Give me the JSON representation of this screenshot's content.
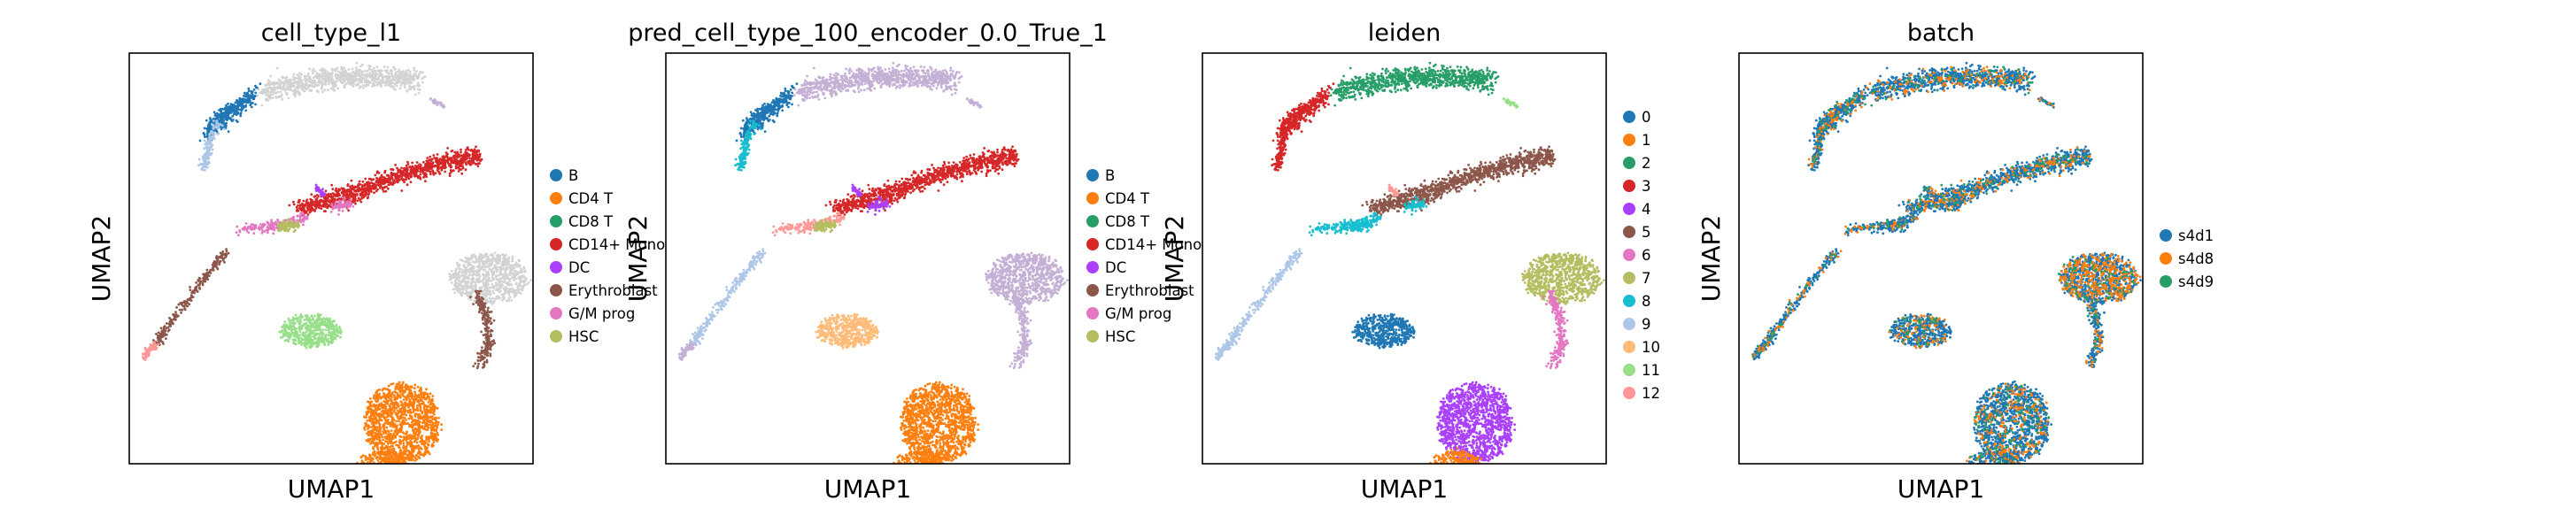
{
  "colors": {
    "tab_blue": "#1f77b4",
    "tab_orange": "#ff7f0e",
    "tab_green": "#279e68",
    "tab_red": "#d62728",
    "tab_purple": "#aa40fc",
    "tab_brown": "#8c564b",
    "tab_pink": "#e377c2",
    "tab_olive": "#b5bd61",
    "tab_cyan": "#17becf",
    "light_blue": "#aec7e8",
    "light_orange": "#ffbb78",
    "light_green": "#98df8a",
    "light_red": "#ff9896",
    "light_purple": "#c5b0d5",
    "light_gray": "#d3d3d3"
  },
  "chart_data": [
    {
      "type": "scatter",
      "title": "cell_type_l1",
      "xlabel": "UMAP1",
      "ylabel": "UMAP2",
      "legend_position": "right",
      "legend": [
        {
          "label": "B",
          "color": "#1f77b4"
        },
        {
          "label": "CD4 T",
          "color": "#ff7f0e"
        },
        {
          "label": "CD8 T",
          "color": "#279e68"
        },
        {
          "label": "CD14+ Mono",
          "color": "#d62728"
        },
        {
          "label": "DC",
          "color": "#aa40fc"
        },
        {
          "label": "Erythroblast",
          "color": "#8c564b"
        },
        {
          "label": "G/M prog",
          "color": "#e377c2"
        },
        {
          "label": "HSC",
          "color": "#b5bd61"
        }
      ]
    },
    {
      "type": "scatter",
      "title": "pred_cell_type_100_encoder_0.0_True_1",
      "xlabel": "UMAP1",
      "ylabel": "UMAP2",
      "legend_position": "right",
      "legend": [
        {
          "label": "B",
          "color": "#1f77b4"
        },
        {
          "label": "CD4 T",
          "color": "#ff7f0e"
        },
        {
          "label": "CD8 T",
          "color": "#279e68"
        },
        {
          "label": "CD14+ Mono",
          "color": "#d62728"
        },
        {
          "label": "DC",
          "color": "#aa40fc"
        },
        {
          "label": "Erythroblast",
          "color": "#8c564b"
        },
        {
          "label": "G/M prog",
          "color": "#e377c2"
        },
        {
          "label": "HSC",
          "color": "#b5bd61"
        }
      ]
    },
    {
      "type": "scatter",
      "title": "leiden",
      "xlabel": "UMAP1",
      "ylabel": "UMAP2",
      "legend_position": "right",
      "legend": [
        {
          "label": "0",
          "color": "#1f77b4"
        },
        {
          "label": "1",
          "color": "#ff7f0e"
        },
        {
          "label": "2",
          "color": "#279e68"
        },
        {
          "label": "3",
          "color": "#d62728"
        },
        {
          "label": "4",
          "color": "#aa40fc"
        },
        {
          "label": "5",
          "color": "#8c564b"
        },
        {
          "label": "6",
          "color": "#e377c2"
        },
        {
          "label": "7",
          "color": "#b5bd61"
        },
        {
          "label": "8",
          "color": "#17becf"
        },
        {
          "label": "9",
          "color": "#aec7e8"
        },
        {
          "label": "10",
          "color": "#ffbb78"
        },
        {
          "label": "11",
          "color": "#98df8a"
        },
        {
          "label": "12",
          "color": "#ff9896"
        }
      ]
    },
    {
      "type": "scatter",
      "title": "batch",
      "xlabel": "UMAP1",
      "ylabel": "UMAP2",
      "legend_position": "right",
      "legend": [
        {
          "label": "s4d1",
          "color": "#1f77b4"
        },
        {
          "label": "s4d8",
          "color": "#ff7f0e"
        },
        {
          "label": "s4d9",
          "color": "#279e68"
        }
      ]
    }
  ]
}
